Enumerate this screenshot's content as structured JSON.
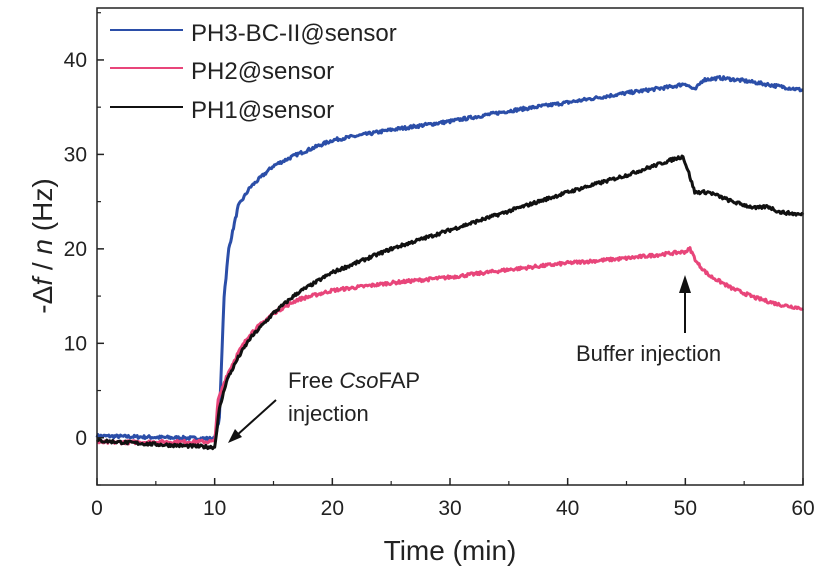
{
  "chart_data": {
    "type": "line",
    "xlabel": "Time (min)",
    "ylabel": {
      "prefix": "-Δ",
      "f": "f",
      "mid": " / ",
      "n": "n",
      "suffix": " (Hz)"
    },
    "xlim": [
      0,
      60
    ],
    "ylim": [
      -5,
      45.5
    ],
    "xticks": [
      "0",
      "10",
      "20",
      "30",
      "40",
      "50",
      "60"
    ],
    "yticks": [
      "0",
      "10",
      "20",
      "30",
      "40"
    ],
    "grid": false,
    "legend_position": "top-left",
    "series": [
      {
        "name": "PH3-BC-II@sensor",
        "color": "#2b4ea8",
        "points": [
          [
            0,
            0.2
          ],
          [
            10,
            -0.1
          ],
          [
            10.4,
            2
          ],
          [
            10.8,
            15
          ],
          [
            11.2,
            20
          ],
          [
            12,
            24.5
          ],
          [
            13,
            26.5
          ],
          [
            15,
            28.8
          ],
          [
            17,
            30
          ],
          [
            20,
            31.5
          ],
          [
            25,
            32.6
          ],
          [
            30,
            33.5
          ],
          [
            35,
            34.6
          ],
          [
            40,
            35.5
          ],
          [
            45,
            36.5
          ],
          [
            49,
            37.2
          ],
          [
            50,
            37.5
          ],
          [
            50.8,
            36.8
          ],
          [
            51.5,
            37.9
          ],
          [
            53,
            38.1
          ],
          [
            55,
            37.8
          ],
          [
            57,
            37.4
          ],
          [
            60,
            36.8
          ]
        ]
      },
      {
        "name": "PH2@sensor",
        "color": "#e8457a",
        "points": [
          [
            0,
            -0.5
          ],
          [
            10,
            -0.4
          ],
          [
            10.3,
            4
          ],
          [
            11,
            6.5
          ],
          [
            12,
            9
          ],
          [
            13,
            11
          ],
          [
            15,
            13.2
          ],
          [
            17,
            14.6
          ],
          [
            20,
            15.6
          ],
          [
            25,
            16.4
          ],
          [
            30,
            17
          ],
          [
            35,
            17.8
          ],
          [
            40,
            18.5
          ],
          [
            45,
            19
          ],
          [
            50,
            19.7
          ],
          [
            50.4,
            20
          ],
          [
            51,
            18.5
          ],
          [
            52,
            17.2
          ],
          [
            54,
            15.8
          ],
          [
            56,
            14.8
          ],
          [
            58,
            14.1
          ],
          [
            60,
            13.7
          ]
        ]
      },
      {
        "name": "PH1@sensor",
        "color": "#111111",
        "points": [
          [
            0,
            -0.3
          ],
          [
            5,
            -0.7
          ],
          [
            10,
            -1
          ],
          [
            10.4,
            3
          ],
          [
            11,
            6
          ],
          [
            12,
            8.5
          ],
          [
            13,
            10.5
          ],
          [
            15,
            13.2
          ],
          [
            17,
            15.3
          ],
          [
            20,
            17.5
          ],
          [
            25,
            20
          ],
          [
            30,
            22
          ],
          [
            35,
            24
          ],
          [
            40,
            26
          ],
          [
            45,
            27.8
          ],
          [
            49,
            29.5
          ],
          [
            49.8,
            29.8
          ],
          [
            50.3,
            28
          ],
          [
            50.8,
            26
          ],
          [
            52,
            26
          ],
          [
            54,
            25
          ],
          [
            56,
            24.3
          ],
          [
            57,
            24.5
          ],
          [
            58,
            23.9
          ],
          [
            60,
            23.6
          ]
        ]
      }
    ],
    "annotations": [
      {
        "text_parts": [
          "Free ",
          "Cso",
          "FAP"
        ],
        "line2": "injection",
        "arrow_to": [
          10.5,
          -0.5
        ]
      },
      {
        "text": "Buffer injection",
        "arrow_to": [
          50,
          20
        ]
      }
    ]
  }
}
